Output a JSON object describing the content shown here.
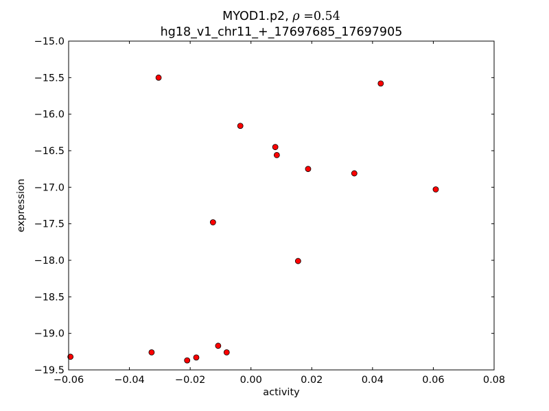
{
  "chart_data": {
    "type": "scatter",
    "title": {
      "line1_prefix": "MYOD1.p2, ",
      "rho_symbol": "ρ",
      "rho_equals": " =0.54",
      "line2": "hg18_v1_chr11_+_17697685_17697905"
    },
    "xlabel": "activity",
    "ylabel": "expression",
    "xlim": [
      -0.06,
      0.08
    ],
    "ylim": [
      -19.5,
      -15.0
    ],
    "xticks": [
      -0.06,
      -0.04,
      -0.02,
      0.0,
      0.02,
      0.04,
      0.06,
      0.08
    ],
    "xtick_labels": [
      "−0.06",
      "−0.04",
      "−0.02",
      "0.00",
      "0.02",
      "0.04",
      "0.06",
      "0.08"
    ],
    "yticks": [
      -15.0,
      -15.5,
      -16.0,
      -16.5,
      -17.0,
      -17.5,
      -18.0,
      -18.5,
      -19.0,
      -19.5
    ],
    "ytick_labels": [
      "−15.0",
      "−15.5",
      "−16.0",
      "−16.5",
      "−17.0",
      "−17.5",
      "−18.0",
      "−18.5",
      "−19.0",
      "−19.5"
    ],
    "marker_color": "#ff0000",
    "marker_edge": "#000000",
    "points": [
      {
        "x": -0.0594,
        "y": -19.32
      },
      {
        "x": -0.0327,
        "y": -19.26
      },
      {
        "x": -0.0304,
        "y": -15.5
      },
      {
        "x": -0.021,
        "y": -19.37
      },
      {
        "x": -0.018,
        "y": -19.33
      },
      {
        "x": -0.0125,
        "y": -17.48
      },
      {
        "x": -0.0108,
        "y": -19.17
      },
      {
        "x": -0.008,
        "y": -19.26
      },
      {
        "x": -0.0035,
        "y": -16.16
      },
      {
        "x": 0.008,
        "y": -16.45
      },
      {
        "x": 0.0085,
        "y": -16.56
      },
      {
        "x": 0.0155,
        "y": -18.01
      },
      {
        "x": 0.0188,
        "y": -16.75
      },
      {
        "x": 0.034,
        "y": -16.81
      },
      {
        "x": 0.0427,
        "y": -15.58
      },
      {
        "x": 0.0608,
        "y": -17.03
      }
    ]
  }
}
